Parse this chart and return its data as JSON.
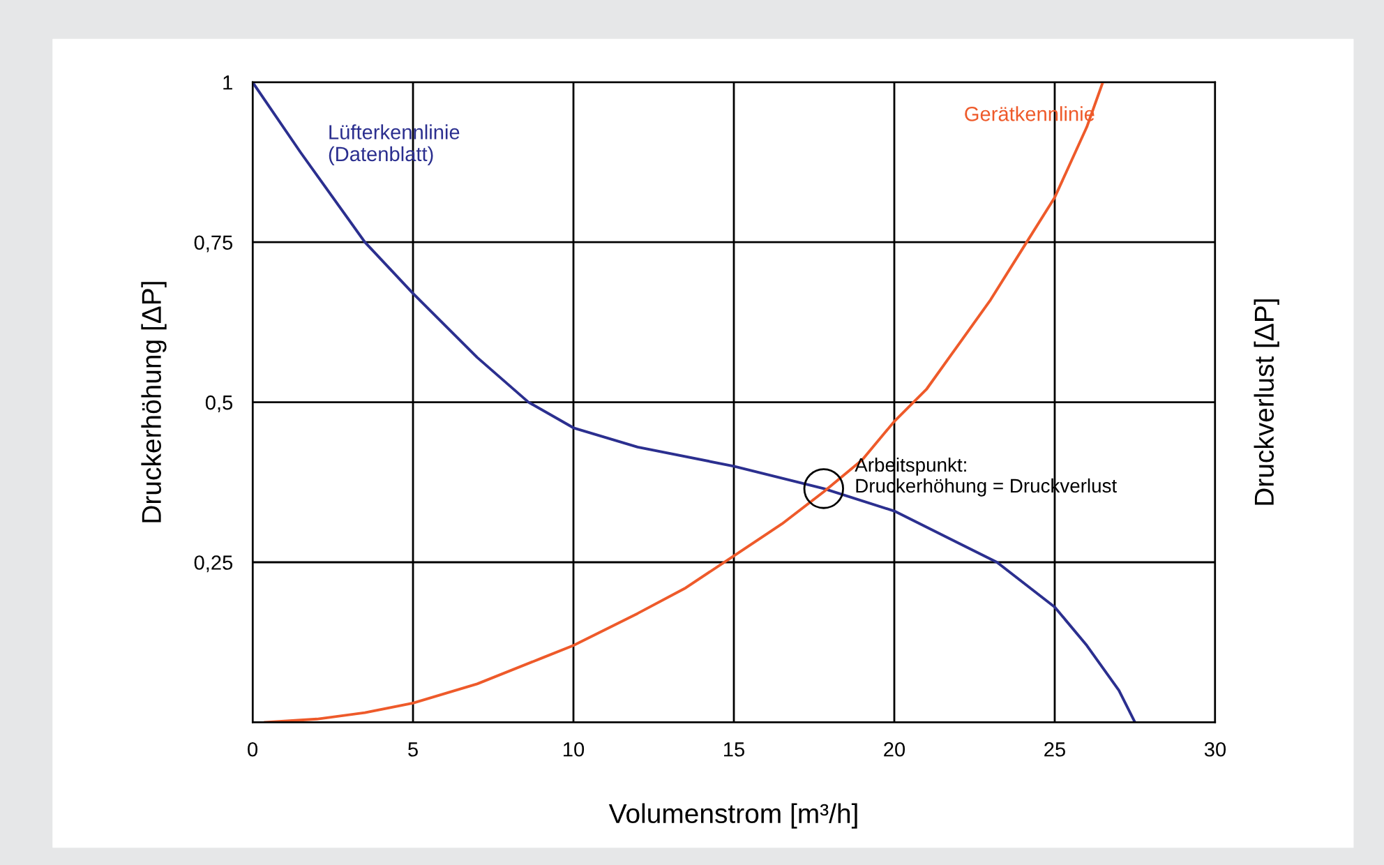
{
  "chart_data": {
    "type": "line",
    "xlabel": "Volumenstrom [m³/h]",
    "ylabel": "Druckerhöhung [ΔP]",
    "y2label": "Druckverlust [ΔP]",
    "xlim": [
      0,
      30
    ],
    "ylim": [
      0,
      1
    ],
    "xticks": [
      0,
      5,
      10,
      15,
      20,
      25,
      30
    ],
    "yticks": [
      {
        "value": 0.25,
        "label": "0,25"
      },
      {
        "value": 0.5,
        "label": "0,5"
      },
      {
        "value": 0.75,
        "label": "0,75"
      },
      {
        "value": 1,
        "label": "1"
      }
    ],
    "grid": true,
    "line_style": "solid",
    "marker": "none",
    "series": [
      {
        "name": "Lüfterkennlinie\n(Datenblatt)",
        "color": "#2b2f8f",
        "x": [
          0,
          1.5,
          3.5,
          5,
          7,
          8.6,
          10,
          12,
          15,
          17.8,
          20,
          22,
          23.2,
          25,
          26,
          27,
          27.5
        ],
        "values": [
          1,
          0.89,
          0.75,
          0.67,
          0.57,
          0.5,
          0.46,
          0.43,
          0.4,
          0.365,
          0.33,
          0.28,
          0.25,
          0.18,
          0.12,
          0.05,
          0
        ]
      },
      {
        "name": "Gerätkennlinie",
        "color": "#ee5a2a",
        "x": [
          0.4,
          2,
          3.5,
          5,
          7,
          9,
          10,
          12,
          13.5,
          15,
          16.5,
          17.8,
          19,
          20,
          21,
          22,
          23,
          24,
          25,
          26,
          26.5
        ],
        "values": [
          0,
          0.005,
          0.015,
          0.03,
          0.06,
          0.1,
          0.12,
          0.17,
          0.21,
          0.26,
          0.31,
          0.36,
          0.41,
          0.47,
          0.52,
          0.59,
          0.66,
          0.74,
          0.82,
          0.93,
          1
        ]
      }
    ],
    "annotations": [
      {
        "text": "Arbeitspunkt:\nDruckerhöhung = Druckverlust",
        "x": 17.8,
        "y": 0.365
      }
    ]
  }
}
